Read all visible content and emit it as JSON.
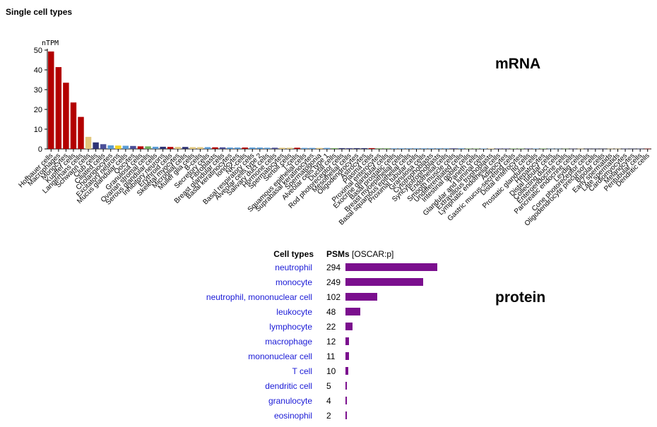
{
  "header": {
    "title": "Single cell types"
  },
  "labels": {
    "mrna": "mRNA",
    "protein": "protein"
  },
  "chart_data": [
    {
      "type": "bar",
      "ylabel": "nTPM",
      "ylim": [
        0,
        50
      ],
      "yticks": [
        0,
        10,
        20,
        30,
        40,
        50
      ],
      "categories": [
        "Hofbauer cells",
        "Macrophages",
        "Monocytes",
        "Kupffer cells",
        "Langerhans cells",
        "Schwann cells",
        "Club cells",
        "Ciliated cells",
        "Cholangiocytes",
        "Excitatory neurons",
        "Mucus glandular cells",
        "Oocytes",
        "Granulosa cells",
        "Ovarian stromal cells",
        "Serous glandular cells",
        "Inhibitory neurons",
        "Erythroid cells",
        "Skeletal myocytes",
        "Microglial cells",
        "Muller glia cells",
        "B-cells",
        "Secretory cells",
        "Fibroblasts",
        "Breast glandular cells",
        "Basal keratinocytes",
        "Ionocytes",
        "NK-cells",
        "Basal respiratory cells",
        "Alveolar cells type 2",
        "Salivary duct cells",
        "Hormone cells",
        "Spermatocytes",
        "Sertoli cells",
        "T-cells",
        "Squamous epithelial cells",
        "Suprabasal keratinocytes",
        "Spermatogonia",
        "Alveolar cells type 1",
        "Ductal cells",
        "Rod photoreceptor cells",
        "Mesothelial cells",
        "Oligodendrocytes",
        "Astrocytes",
        "Plasma cells",
        "Proximal enterocytes",
        "Exocrine glandular cells",
        "Basal prostatic cells",
        "Breast myoepithelial cells",
        "Basal squamous epithelial cells",
        "Proximal tubular cells",
        "Granulosa cells",
        "Cytotrophoblasts",
        "Syncytiotrophoblasts",
        "Endothelial cells",
        "Smooth muscle cells",
        "Undifferentiated cells",
        "Intestinal goblet cells",
        "Paneth cells",
        "Glandular and luminal cells",
        "Extravillous trophoblasts",
        "Lymphatic endothelial cells",
        "Adipocytes",
        "Gastric mucus-secreting cells",
        "Distal enterocytes",
        "Ito cells",
        "Prostatic glandular cells",
        "Hepatocytes",
        "Distal tubular cells",
        "Collecting duct cells",
        "Enteroendocrine cells",
        "Pancreatic endocrine cells",
        "Leydig cells",
        "Cone photoreceptor cells",
        "Oligodendrocyte precursor cells",
        "Bipolar cells",
        "Early spermatids",
        "Late spermatids",
        "Cardiomyocytes",
        "Melanocytes",
        "Peritubular cells",
        "Dendritic cells"
      ],
      "values": [
        49.3,
        41.4,
        33.5,
        23.5,
        16.2,
        6.1,
        3.3,
        2.4,
        1.8,
        1.7,
        1.6,
        1.5,
        1.3,
        1.3,
        1.1,
        1.1,
        1.0,
        1.0,
        1.0,
        0.9,
        0.9,
        0.9,
        0.8,
        0.8,
        0.7,
        0.7,
        0.7,
        0.7,
        0.7,
        0.6,
        0.6,
        0.6,
        0.6,
        0.6,
        0.5,
        0.5,
        0.5,
        0.5,
        0.4,
        0.4,
        0.4,
        0.4,
        0.4,
        0.4,
        0.3,
        0.3,
        0.3,
        0.3,
        0.3,
        0.3,
        0.3,
        0.3,
        0.3,
        0.3,
        0.3,
        0.3,
        0.2,
        0.2,
        0.2,
        0.2,
        0.2,
        0.2,
        0.2,
        0.2,
        0.2,
        0.2,
        0.2,
        0.1,
        0.1,
        0.1,
        0.1,
        0.1,
        0.1,
        0.1,
        0.1,
        0.1,
        0.1,
        0.1,
        0.1,
        0.1,
        0.1
      ],
      "colors": [
        "#b30000",
        "#b30000",
        "#b30000",
        "#b30000",
        "#b30000",
        "#e2c77d",
        "#2e3475",
        "#4b4f98",
        "#5a9bd5",
        "#f2d21f",
        "#5a9bd5",
        "#4b4f98",
        "#b30000",
        "#6fad5b",
        "#5a9bd5",
        "#2e3475",
        "#b30000",
        "#e2c77d",
        "#2e3475",
        "#e2c77d",
        "#e2c77d",
        "#5a9bd5",
        "#b30000",
        "#4b4f98",
        "#5a9bd5",
        "#5a9bd5",
        "#b30000",
        "#5a9bd5",
        "#5a9bd5",
        "#5a9bd5",
        "#4b4f98",
        "#e2c77d",
        "#e2c77d",
        "#b30000",
        "#5a9bd5",
        "#5a9bd5",
        "#e2c77d",
        "#5a9bd5",
        "#6fad5b",
        "#2e3475",
        "#4b4f98",
        "#2e3475",
        "#2e3475",
        "#b30000",
        "#6fad5b",
        "#6fad5b",
        "#5a9bd5",
        "#5a9bd5",
        "#5a9bd5",
        "#5a9bd5",
        "#5a9bd5",
        "#5a9bd5",
        "#5a9bd5",
        "#5a9bd5",
        "#4b4f98",
        "#5a9bd5",
        "#6fad5b",
        "#6fad5b",
        "#5a9bd5",
        "#e2c77d",
        "#4b4f98",
        "#4b4f98",
        "#6fad5b",
        "#6fad5b",
        "#4b4f98",
        "#5a9bd5",
        "#6fad5b",
        "#5a9bd5",
        "#5a9bd5",
        "#6fad5b",
        "#4b4f98",
        "#e2c77d",
        "#2e3475",
        "#2e3475",
        "#2e3475",
        "#e2c77d",
        "#e2c77d",
        "#4b4f98",
        "#2e3475",
        "#4b4f98",
        "#b30000"
      ],
      "grid": false
    },
    {
      "type": "bar",
      "orientation": "horizontal",
      "header_left": "Cell types",
      "header_right": "PSMs",
      "header_unit": "[OSCAR:p]",
      "categories": [
        "neutrophil",
        "monocyte",
        "neutrophil, mononuclear cell",
        "leukocyte",
        "lymphocyte",
        "macrophage",
        "mononuclear cell",
        "T cell",
        "dendritic cell",
        "granulocyte",
        "eosinophil"
      ],
      "values": [
        294,
        249,
        102,
        48,
        22,
        12,
        11,
        10,
        5,
        4,
        2
      ],
      "color": "#7b0f8e"
    }
  ]
}
